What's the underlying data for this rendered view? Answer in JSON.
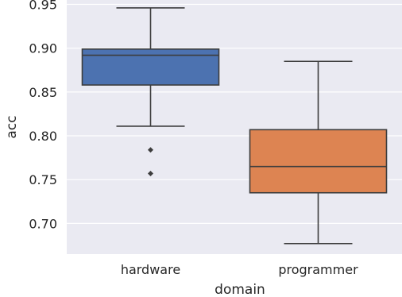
{
  "chart_data": {
    "type": "box",
    "title": "",
    "xlabel": "domain",
    "ylabel": "acc",
    "ylim": [
      0.665,
      0.955
    ],
    "yticks": [
      0.7,
      0.75,
      0.8,
      0.85,
      0.9,
      0.95
    ],
    "ytick_labels": [
      "0.70",
      "0.75",
      "0.80",
      "0.85",
      "0.90",
      "0.95"
    ],
    "grid": true,
    "categories": [
      "hardware",
      "programmer"
    ],
    "boxes": [
      {
        "category": "hardware",
        "whisker_low": 0.811,
        "q1": 0.858,
        "median": 0.892,
        "q3": 0.899,
        "whisker_high": 0.946,
        "outliers": [
          0.784,
          0.757
        ],
        "color": "#4c72b0"
      },
      {
        "category": "programmer",
        "whisker_low": 0.677,
        "q1": 0.735,
        "median": 0.765,
        "q3": 0.807,
        "whisker_high": 0.885,
        "outliers": [],
        "color": "#dd8452"
      }
    ]
  }
}
